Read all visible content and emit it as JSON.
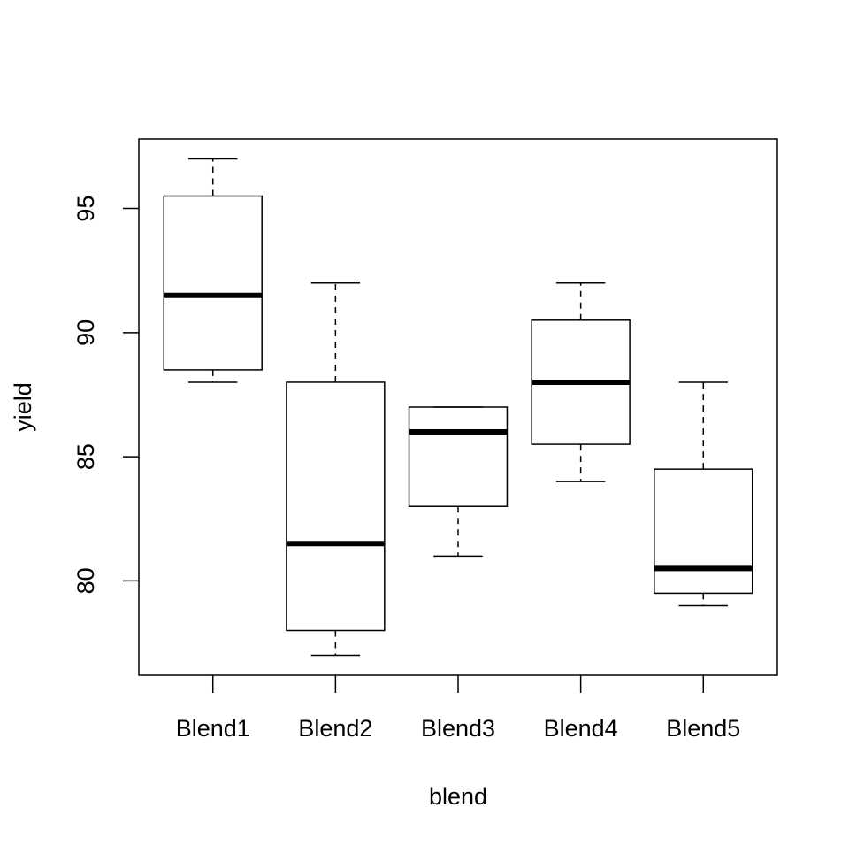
{
  "chart_data": {
    "type": "boxplot",
    "x_label": "blend",
    "y_label": "yield",
    "categories": [
      "Blend1",
      "Blend2",
      "Blend3",
      "Blend4",
      "Blend5"
    ],
    "min": [
      88,
      77,
      81,
      84,
      79
    ],
    "q1": [
      88.5,
      78,
      83,
      85.5,
      79.5
    ],
    "median": [
      91.5,
      81.5,
      86,
      88,
      80.5
    ],
    "q3": [
      95.5,
      88,
      87,
      90.5,
      84.5
    ],
    "max": [
      97,
      92,
      87,
      92,
      88
    ],
    "color": "#000000",
    "ylim": [
      76.2,
      97.8
    ],
    "yticks": [
      80,
      85,
      90,
      95
    ]
  }
}
